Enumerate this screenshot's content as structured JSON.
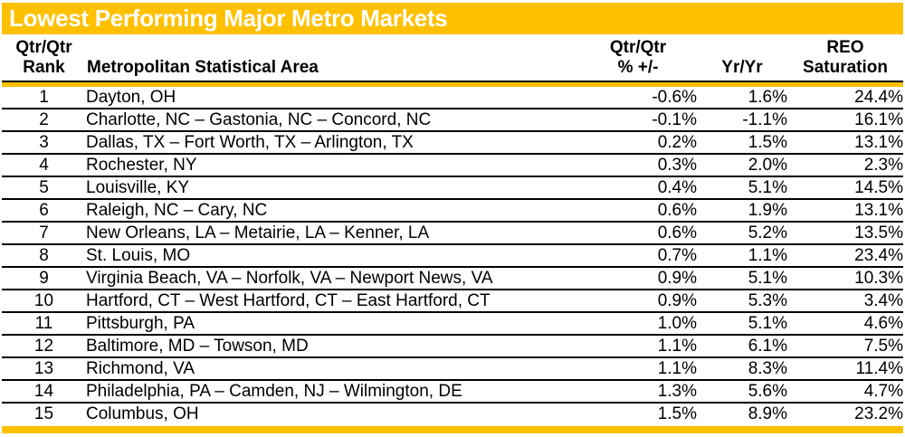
{
  "colors": {
    "gold": "#FFC000",
    "title_text": "#FFFFFF",
    "body_text": "#000000"
  },
  "chart_data": {
    "type": "table",
    "title": "Lowest Performing Major Metro Markets",
    "columns": [
      {
        "key": "rank",
        "header": "Qtr/Qtr\nRank"
      },
      {
        "key": "msa",
        "header": "Metropolitan Statistical Area"
      },
      {
        "key": "qtr",
        "header": "Qtr/Qtr\n% +/-"
      },
      {
        "key": "yr",
        "header": "Yr/Yr"
      },
      {
        "key": "reo",
        "header": "REO\nSaturation"
      }
    ],
    "rows": [
      {
        "rank": "1",
        "msa": "Dayton, OH",
        "qtr": "-0.6%",
        "yr": "1.6%",
        "reo": "24.4%"
      },
      {
        "rank": "2",
        "msa": "Charlotte, NC – Gastonia, NC – Concord, NC",
        "qtr": "-0.1%",
        "yr": "-1.1%",
        "reo": "16.1%"
      },
      {
        "rank": "3",
        "msa": "Dallas, TX – Fort Worth, TX – Arlington, TX",
        "qtr": "0.2%",
        "yr": "1.5%",
        "reo": "13.1%"
      },
      {
        "rank": "4",
        "msa": "Rochester, NY",
        "qtr": "0.3%",
        "yr": "2.0%",
        "reo": "2.3%"
      },
      {
        "rank": "5",
        "msa": "Louisville, KY",
        "qtr": "0.4%",
        "yr": "5.1%",
        "reo": "14.5%"
      },
      {
        "rank": "6",
        "msa": "Raleigh, NC – Cary, NC",
        "qtr": "0.6%",
        "yr": "1.9%",
        "reo": "13.1%"
      },
      {
        "rank": "7",
        "msa": "New Orleans, LA – Metairie, LA – Kenner, LA",
        "qtr": "0.6%",
        "yr": "5.2%",
        "reo": "13.5%"
      },
      {
        "rank": "8",
        "msa": "St. Louis, MO",
        "qtr": "0.7%",
        "yr": "1.1%",
        "reo": "23.4%"
      },
      {
        "rank": "9",
        "msa": "Virginia Beach, VA – Norfolk, VA – Newport News, VA",
        "qtr": "0.9%",
        "yr": "5.1%",
        "reo": "10.3%"
      },
      {
        "rank": "10",
        "msa": "Hartford, CT – West Hartford, CT – East Hartford, CT",
        "qtr": "0.9%",
        "yr": "5.3%",
        "reo": "3.4%"
      },
      {
        "rank": "11",
        "msa": "Pittsburgh, PA",
        "qtr": "1.0%",
        "yr": "5.1%",
        "reo": "4.6%"
      },
      {
        "rank": "12",
        "msa": "Baltimore, MD – Towson, MD",
        "qtr": "1.1%",
        "yr": "6.1%",
        "reo": "7.5%"
      },
      {
        "rank": "13",
        "msa": "Richmond, VA",
        "qtr": "1.1%",
        "yr": "8.3%",
        "reo": "11.4%"
      },
      {
        "rank": "14",
        "msa": "Philadelphia, PA – Camden, NJ – Wilmington, DE",
        "qtr": "1.3%",
        "yr": "5.6%",
        "reo": "4.7%"
      },
      {
        "rank": "15",
        "msa": "Columbus, OH",
        "qtr": "1.5%",
        "yr": "8.9%",
        "reo": "23.2%"
      }
    ]
  }
}
